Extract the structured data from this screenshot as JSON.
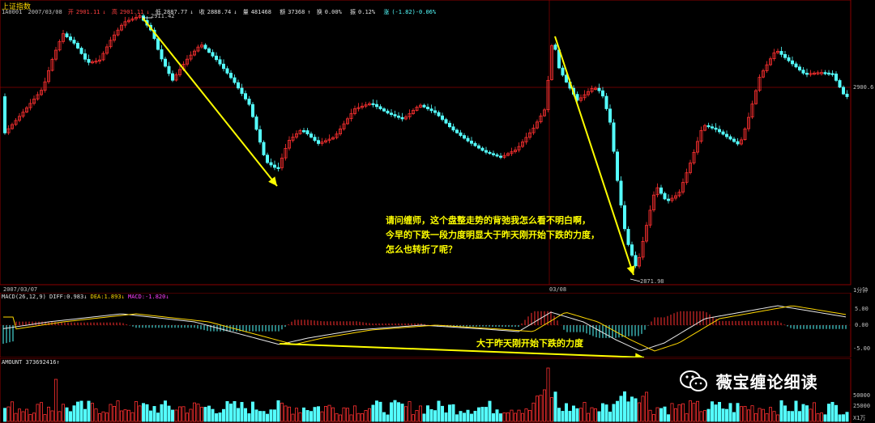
{
  "header": {
    "title": "上证指数",
    "code": "1A0001",
    "date": "2007/03/08",
    "open_label": "开",
    "open": "2901.11",
    "high_label": "高",
    "high": "2901.11",
    "low_label": "低",
    "low": "2887.77",
    "close_label": "收",
    "close": "2888.74",
    "vol_label": "量",
    "vol": "481468",
    "amount_label": "额",
    "amount": "37368",
    "turnover_label": "换",
    "turnover": "0.00%",
    "amp_label": "振",
    "amp": "0.12%",
    "change_label": "涨",
    "change": "(-1.82)-0.06%"
  },
  "price_pane": {
    "high_marker": "2911.42",
    "low_marker": "2871.98",
    "right_level": "2900.6",
    "period": "1分钟"
  },
  "time_axis": {
    "left_date": "2007/03/07",
    "mid_date": "03/08"
  },
  "macd_pane": {
    "label": "MACD(26,12,9)",
    "diff_label": "DIFF:",
    "diff": "0.983",
    "dea_label": "DEA:",
    "dea": "1.893",
    "macd_label": "MACD:",
    "macd": "-1.820",
    "axis_labels": [
      "5.00",
      "0.00",
      "-5.00"
    ]
  },
  "volume_pane": {
    "label": "AMOUNT",
    "value": "373692416",
    "axis_labels": [
      "50000",
      "25000",
      "X1万"
    ]
  },
  "annotations": {
    "question_lines": [
      "请问缠师，这个盘整走势的背弛我怎么看不明白啊，",
      "今早的下跌一段力度明显大于昨天刚开始下跌的力度，",
      "怎么也转折了呢？"
    ],
    "macd_note": "大于昨天刚开始下跌的力度"
  },
  "watermark": {
    "icon": "wechat-icon",
    "text": "薇宝缠论细读"
  },
  "colors": {
    "up": "#ff3030",
    "down": "#54ffff",
    "annotation": "#ffff00",
    "grid": "#8b0000"
  }
}
